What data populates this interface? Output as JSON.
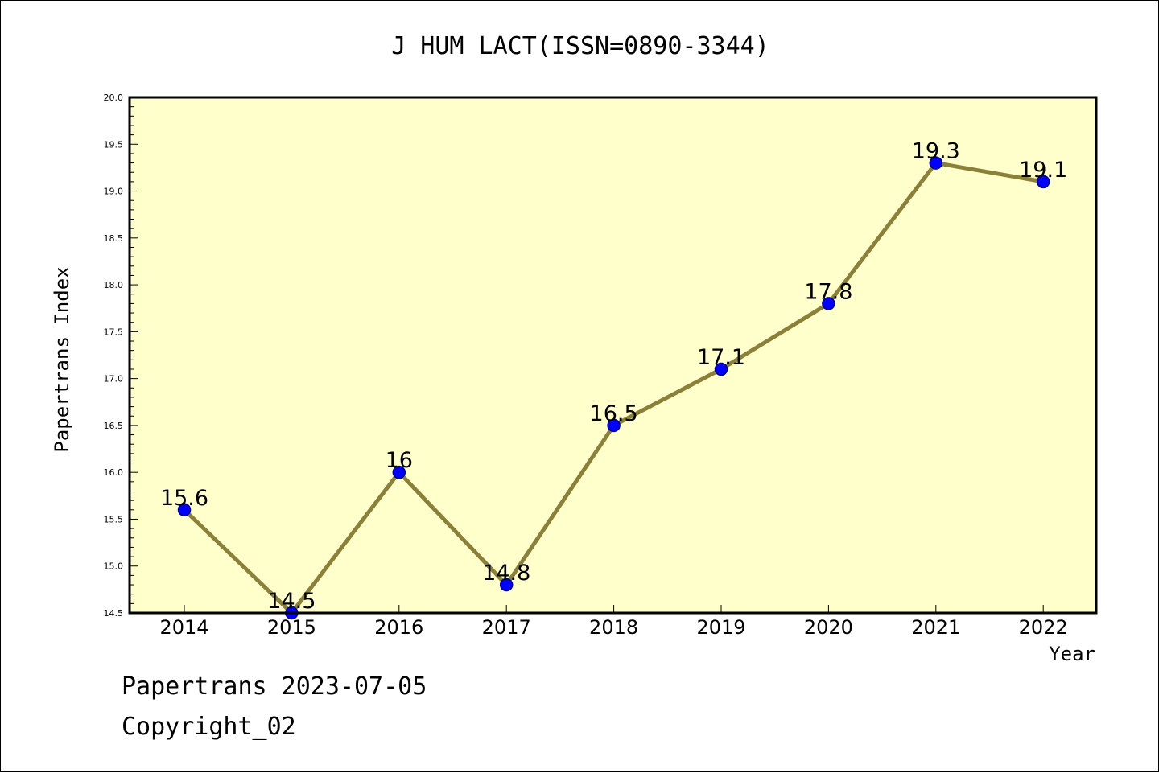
{
  "chart_data": {
    "type": "line",
    "title": "J HUM LACT(ISSN=0890-3344)",
    "xlabel": "Year",
    "ylabel": "Papertrans Index",
    "x": [
      "2014",
      "2015",
      "2016",
      "2017",
      "2018",
      "2019",
      "2020",
      "2021",
      "2022"
    ],
    "series": [
      {
        "values": [
          15.6,
          14.5,
          16.0,
          14.8,
          16.5,
          17.1,
          17.8,
          19.3,
          19.1
        ],
        "data_labels": [
          "15.6",
          "14.5",
          "16",
          "14.8",
          "16.5",
          "17.1",
          "17.8",
          "19.3",
          "19.1"
        ]
      }
    ],
    "ylim": [
      14.5,
      20.0
    ],
    "yticks": [
      "14.5",
      "15.0",
      "15.5",
      "16.0",
      "16.5",
      "17.0",
      "17.5",
      "18.0",
      "18.5",
      "19.0",
      "19.5",
      "20.0"
    ],
    "grid": false,
    "legend": "none",
    "colors": {
      "plot_background": "#ffffcc",
      "line": "#8b8038",
      "marker_fill": "#0000ff",
      "marker_edge": "#00008b"
    }
  },
  "footer": {
    "date_line": "Papertrans 2023-07-05",
    "copyright": "Copyright_02"
  }
}
